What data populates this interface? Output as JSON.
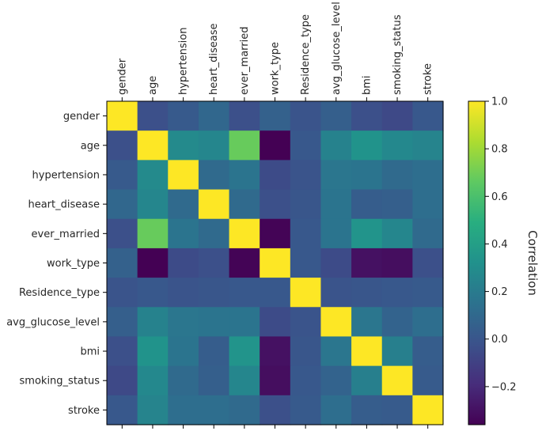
{
  "chart_data": {
    "type": "heatmap",
    "title": "",
    "variables": [
      "gender",
      "age",
      "hypertension",
      "heart_disease",
      "ever_married",
      "work_type",
      "Residence_type",
      "avg_glucose_level",
      "bmi",
      "smoking_status",
      "stroke"
    ],
    "matrix": [
      [
        1.0,
        -0.03,
        0.02,
        0.09,
        -0.03,
        0.06,
        -0.01,
        0.05,
        -0.03,
        -0.06,
        0.01
      ],
      [
        -0.03,
        1.0,
        0.28,
        0.26,
        0.68,
        -0.36,
        0.01,
        0.24,
        0.33,
        0.27,
        0.25
      ],
      [
        0.02,
        0.28,
        1.0,
        0.11,
        0.16,
        -0.05,
        -0.01,
        0.17,
        0.16,
        0.11,
        0.13
      ],
      [
        0.09,
        0.26,
        0.11,
        1.0,
        0.11,
        -0.03,
        0.0,
        0.16,
        0.04,
        0.05,
        0.13
      ],
      [
        -0.03,
        0.68,
        0.16,
        0.11,
        1.0,
        -0.35,
        0.01,
        0.16,
        0.34,
        0.26,
        0.11
      ],
      [
        0.06,
        -0.36,
        -0.05,
        -0.03,
        -0.35,
        1.0,
        0.01,
        -0.05,
        -0.3,
        -0.31,
        -0.03
      ],
      [
        -0.01,
        0.01,
        -0.01,
        0.0,
        0.01,
        0.01,
        1.0,
        -0.01,
        0.0,
        0.01,
        0.02
      ],
      [
        0.05,
        0.24,
        0.17,
        0.16,
        0.16,
        -0.05,
        -0.01,
        1.0,
        0.17,
        0.07,
        0.13
      ],
      [
        -0.03,
        0.33,
        0.16,
        0.04,
        0.34,
        -0.3,
        0.0,
        0.17,
        1.0,
        0.22,
        0.04
      ],
      [
        -0.06,
        0.27,
        0.11,
        0.05,
        0.26,
        -0.31,
        0.01,
        0.07,
        0.22,
        1.0,
        0.03
      ],
      [
        0.01,
        0.25,
        0.13,
        0.13,
        0.11,
        -0.03,
        0.02,
        0.13,
        0.04,
        0.03,
        1.0
      ]
    ],
    "vmin": -0.36,
    "vmax": 1.0,
    "colormap": "viridis",
    "colorbar": {
      "label": "Correlation",
      "ticks": [
        1.0,
        0.8,
        0.6,
        0.4,
        0.2,
        0.0,
        -0.2
      ],
      "tick_labels": [
        "1.0",
        "0.8",
        "0.6",
        "0.4",
        "0.2",
        "0.0",
        "−0.2"
      ]
    }
  }
}
